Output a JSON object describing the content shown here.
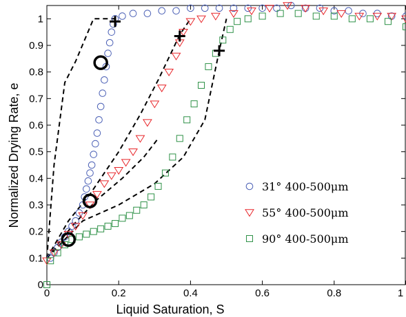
{
  "chart_data": {
    "type": "scatter",
    "xlabel": "Liquid Saturation, S",
    "ylabel": "Normalized Drying Rate, e",
    "xlim": [
      0,
      1
    ],
    "ylim": [
      0,
      1.05
    ],
    "x_ticks": [
      0,
      0.2,
      0.4,
      0.6,
      0.8,
      1
    ],
    "x_tick_labels": [
      "0",
      "0.2",
      "0.4",
      "0.6",
      "0.8",
      "1"
    ],
    "y_ticks": [
      0,
      0.1,
      0.2,
      0.3,
      0.4,
      0.5,
      0.6,
      0.7,
      0.8,
      0.9,
      1
    ],
    "y_tick_labels": [
      "0",
      "0.1",
      "0.2",
      "0.3",
      "0.4",
      "0.5",
      "0.6",
      "0.7",
      "0.8",
      "0.9",
      "1"
    ],
    "grid": false,
    "legend_position": "center-right",
    "series": [
      {
        "name": "31° 400-500μm",
        "marker": "circle",
        "color": "#4a5fb5",
        "points": [
          [
            0.01,
            0.1
          ],
          [
            0.02,
            0.12
          ],
          [
            0.03,
            0.14
          ],
          [
            0.04,
            0.16
          ],
          [
            0.05,
            0.18
          ],
          [
            0.06,
            0.2
          ],
          [
            0.07,
            0.22
          ],
          [
            0.08,
            0.24
          ],
          [
            0.09,
            0.27
          ],
          [
            0.1,
            0.3
          ],
          [
            0.105,
            0.33
          ],
          [
            0.11,
            0.36
          ],
          [
            0.115,
            0.39
          ],
          [
            0.12,
            0.42
          ],
          [
            0.125,
            0.45
          ],
          [
            0.13,
            0.49
          ],
          [
            0.135,
            0.53
          ],
          [
            0.14,
            0.57
          ],
          [
            0.145,
            0.62
          ],
          [
            0.15,
            0.67
          ],
          [
            0.155,
            0.72
          ],
          [
            0.16,
            0.77
          ],
          [
            0.165,
            0.82
          ],
          [
            0.17,
            0.87
          ],
          [
            0.175,
            0.91
          ],
          [
            0.18,
            0.95
          ],
          [
            0.185,
            0.98
          ],
          [
            0.19,
            1.0
          ],
          [
            0.21,
            1.01
          ],
          [
            0.24,
            1.02
          ],
          [
            0.28,
            1.02
          ],
          [
            0.32,
            1.03
          ],
          [
            0.36,
            1.03
          ],
          [
            0.4,
            1.04
          ],
          [
            0.44,
            1.04
          ],
          [
            0.48,
            1.04
          ],
          [
            0.52,
            1.04
          ],
          [
            0.56,
            1.04
          ],
          [
            0.6,
            1.04
          ],
          [
            0.64,
            1.04
          ],
          [
            0.68,
            1.05
          ],
          [
            0.72,
            1.04
          ],
          [
            0.76,
            1.04
          ],
          [
            0.8,
            1.03
          ],
          [
            0.84,
            1.03
          ],
          [
            0.88,
            1.02
          ],
          [
            0.92,
            1.02
          ],
          [
            0.96,
            1.01
          ],
          [
            1.0,
            1.01
          ]
        ]
      },
      {
        "name": "55° 400-500μm",
        "marker": "triangle-down",
        "color": "#e8262a",
        "points": [
          [
            0.0,
            0.09
          ],
          [
            0.02,
            0.12
          ],
          [
            0.04,
            0.15
          ],
          [
            0.06,
            0.19
          ],
          [
            0.08,
            0.22
          ],
          [
            0.1,
            0.26
          ],
          [
            0.12,
            0.3
          ],
          [
            0.14,
            0.34
          ],
          [
            0.16,
            0.38
          ],
          [
            0.18,
            0.41
          ],
          [
            0.2,
            0.43
          ],
          [
            0.22,
            0.46
          ],
          [
            0.24,
            0.5
          ],
          [
            0.26,
            0.55
          ],
          [
            0.28,
            0.61
          ],
          [
            0.3,
            0.68
          ],
          [
            0.32,
            0.74
          ],
          [
            0.34,
            0.8
          ],
          [
            0.36,
            0.86
          ],
          [
            0.37,
            0.91
          ],
          [
            0.38,
            0.95
          ],
          [
            0.4,
            0.99
          ],
          [
            0.43,
            1.0
          ],
          [
            0.47,
            1.01
          ],
          [
            0.52,
            1.02
          ],
          [
            0.57,
            1.03
          ],
          [
            0.62,
            1.04
          ],
          [
            0.67,
            1.05
          ],
          [
            0.72,
            1.04
          ],
          [
            0.77,
            1.03
          ],
          [
            0.82,
            1.02
          ],
          [
            0.87,
            1.01
          ],
          [
            0.92,
            1.01
          ],
          [
            0.96,
            1.01
          ],
          [
            1.0,
            1.0
          ]
        ]
      },
      {
        "name": "90° 400-500μm",
        "marker": "square",
        "color": "#2e9147",
        "points": [
          [
            0.0,
            0.0
          ],
          [
            0.01,
            0.09
          ],
          [
            0.03,
            0.12
          ],
          [
            0.05,
            0.15
          ],
          [
            0.07,
            0.17
          ],
          [
            0.09,
            0.18
          ],
          [
            0.11,
            0.19
          ],
          [
            0.13,
            0.2
          ],
          [
            0.15,
            0.21
          ],
          [
            0.17,
            0.22
          ],
          [
            0.19,
            0.23
          ],
          [
            0.21,
            0.25
          ],
          [
            0.23,
            0.26
          ],
          [
            0.25,
            0.28
          ],
          [
            0.27,
            0.3
          ],
          [
            0.29,
            0.33
          ],
          [
            0.31,
            0.37
          ],
          [
            0.33,
            0.42
          ],
          [
            0.35,
            0.48
          ],
          [
            0.37,
            0.55
          ],
          [
            0.39,
            0.62
          ],
          [
            0.41,
            0.68
          ],
          [
            0.43,
            0.75
          ],
          [
            0.45,
            0.82
          ],
          [
            0.47,
            0.87
          ],
          [
            0.49,
            0.92
          ],
          [
            0.51,
            0.96
          ],
          [
            0.53,
            0.99
          ],
          [
            0.56,
            1.0
          ],
          [
            0.6,
            1.01
          ],
          [
            0.65,
            1.02
          ],
          [
            0.7,
            1.02
          ],
          [
            0.75,
            1.01
          ],
          [
            0.8,
            1.01
          ],
          [
            0.85,
            1.0
          ],
          [
            0.9,
            1.0
          ],
          [
            0.95,
            0.99
          ],
          [
            1.0,
            0.97
          ]
        ]
      }
    ],
    "dashed_curves": [
      [
        [
          0.0,
          0.1
        ],
        [
          0.02,
          0.45
        ],
        [
          0.05,
          0.76
        ],
        [
          0.08,
          0.84
        ],
        [
          0.13,
          1.0
        ],
        [
          0.19,
          1.0
        ]
      ],
      [
        [
          0.0,
          0.1
        ],
        [
          0.06,
          0.24
        ],
        [
          0.12,
          0.34
        ],
        [
          0.2,
          0.5
        ],
        [
          0.26,
          0.64
        ],
        [
          0.31,
          0.77
        ],
        [
          0.37,
          0.94
        ],
        [
          0.4,
          1.0
        ]
      ],
      [
        [
          0.0,
          0.1
        ],
        [
          0.1,
          0.24
        ],
        [
          0.2,
          0.3
        ],
        [
          0.3,
          0.38
        ],
        [
          0.38,
          0.48
        ],
        [
          0.44,
          0.62
        ],
        [
          0.48,
          0.88
        ],
        [
          0.5,
          1.0
        ]
      ],
      [
        [
          0.0,
          0.1
        ],
        [
          0.07,
          0.22
        ],
        [
          0.14,
          0.32
        ],
        [
          0.21,
          0.4
        ],
        [
          0.27,
          0.48
        ],
        [
          0.31,
          0.55
        ]
      ]
    ],
    "transition_circles": [
      [
        0.15,
        0.835
      ],
      [
        0.12,
        0.315
      ],
      [
        0.06,
        0.17
      ]
    ],
    "transition_crosses": [
      [
        0.19,
        0.99
      ],
      [
        0.37,
        0.935
      ],
      [
        0.48,
        0.88
      ]
    ]
  }
}
